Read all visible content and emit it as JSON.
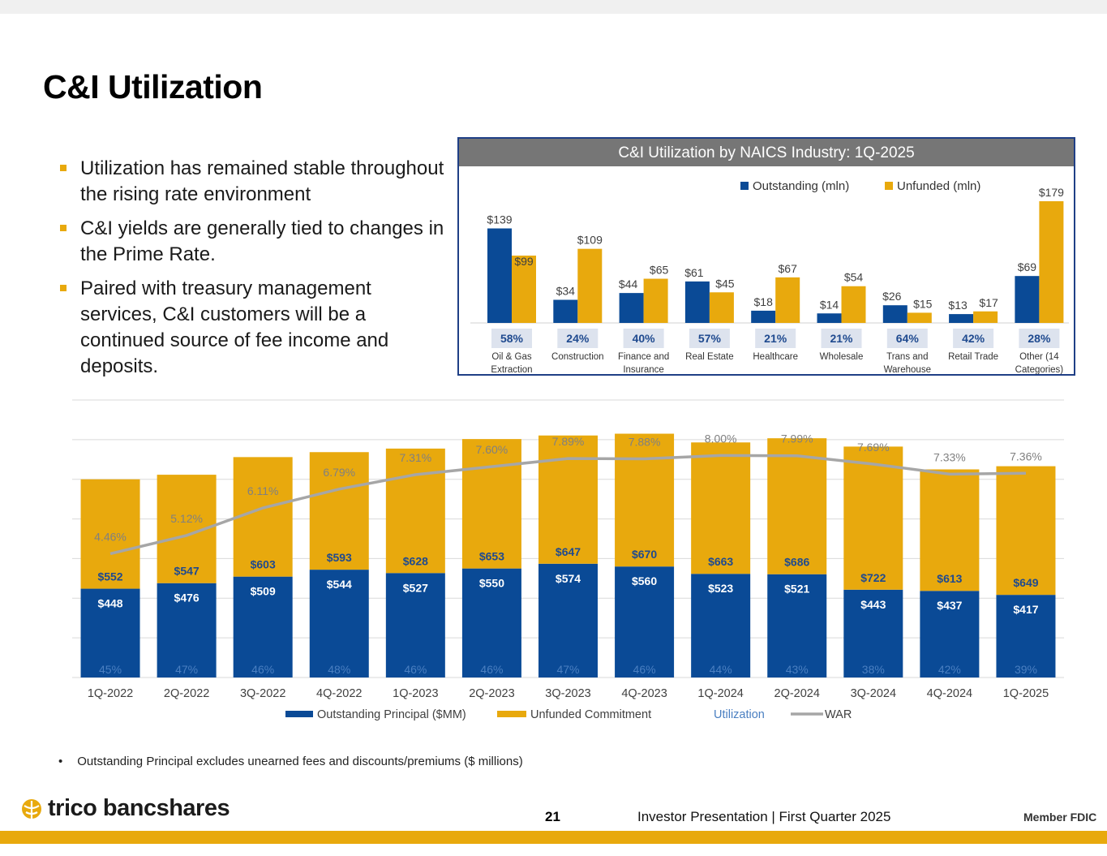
{
  "page": {
    "title": "C&I Utilization",
    "bullets": [
      "Utilization has remained stable throughout the rising rate environment",
      "C&I yields are generally tied to changes in the Prime Rate.",
      "Paired with treasury management services, C&I customers will be a continued source of fee income and deposits."
    ],
    "footnote_dot": "•",
    "footnote": "Outstanding Principal excludes unearned fees and discounts/premiums ($ millions)",
    "logo_text": "trico bancshares",
    "page_number": "21",
    "footer_text": "Investor Presentation | First Quarter 2025",
    "fdic_text": "Member FDIC"
  },
  "colors": {
    "outstanding": "#0a4a96",
    "unfunded": "#e8a90d",
    "war_line": "#a6a6a6",
    "utilization_text": "#4a7fc1",
    "naics_header_bg": "#767676"
  },
  "chart_data": [
    {
      "type": "bar",
      "title": "C&I Utilization by NAICS Industry: 1Q-2025",
      "categories": [
        "Oil & Gas Extraction",
        "Construction",
        "Finance and Insurance",
        "Real Estate",
        "Healthcare",
        "Wholesale",
        "Trans and Warehouse",
        "Retail Trade",
        "Other (14 Categories)"
      ],
      "category_lines": [
        [
          "Oil & Gas",
          "Extraction"
        ],
        [
          "Construction"
        ],
        [
          "Finance and",
          "Insurance"
        ],
        [
          "Real Estate"
        ],
        [
          "Healthcare"
        ],
        [
          "Wholesale"
        ],
        [
          "Trans and",
          "Warehouse"
        ],
        [
          "Retail Trade"
        ],
        [
          "Other (14",
          "Categories)"
        ]
      ],
      "series": [
        {
          "name": "Outstanding (mln)",
          "values": [
            139,
            34,
            44,
            61,
            18,
            14,
            26,
            13,
            69
          ],
          "labels": [
            "$139",
            "$34",
            "$44",
            "$61",
            "$18",
            "$14",
            "$26",
            "$13",
            "$69"
          ]
        },
        {
          "name": "Unfunded (mln)",
          "values": [
            99,
            109,
            65,
            45,
            67,
            54,
            15,
            17,
            179
          ],
          "labels": [
            "$99",
            "$109",
            "$65",
            "$45",
            "$67",
            "$54",
            "$15",
            "$17",
            "$179"
          ]
        }
      ],
      "utilization": [
        "58%",
        "24%",
        "40%",
        "57%",
        "21%",
        "21%",
        "64%",
        "42%",
        "28%"
      ],
      "ylim": [
        0,
        179
      ],
      "legend": "top-right"
    },
    {
      "type": "bar",
      "stacked": true,
      "categories": [
        "1Q-2022",
        "2Q-2022",
        "3Q-2022",
        "4Q-2022",
        "1Q-2023",
        "2Q-2023",
        "3Q-2023",
        "4Q-2023",
        "1Q-2024",
        "2Q-2024",
        "3Q-2024",
        "4Q-2024",
        "1Q-2025"
      ],
      "series": [
        {
          "name": "Outstanding Principal ($MM)",
          "values": [
            448,
            476,
            509,
            544,
            527,
            550,
            574,
            560,
            523,
            521,
            443,
            437,
            417
          ],
          "labels": [
            "$448",
            "$476",
            "$509",
            "$544",
            "$527",
            "$550",
            "$574",
            "$560",
            "$523",
            "$521",
            "$443",
            "$437",
            "$417"
          ]
        },
        {
          "name": "Unfunded Commitment",
          "values": [
            552,
            547,
            603,
            593,
            628,
            653,
            647,
            670,
            663,
            686,
            722,
            613,
            649
          ],
          "labels": [
            "$552",
            "$547",
            "$603",
            "$593",
            "$628",
            "$653",
            "$647",
            "$670",
            "$663",
            "$686",
            "$722",
            "$613",
            "$649"
          ]
        },
        {
          "name": "Utilization",
          "values": [
            45,
            47,
            46,
            48,
            46,
            46,
            47,
            46,
            44,
            43,
            38,
            42,
            39
          ],
          "labels": [
            "45%",
            "47%",
            "46%",
            "48%",
            "46%",
            "46%",
            "47%",
            "46%",
            "44%",
            "43%",
            "38%",
            "42%",
            "39%"
          ]
        },
        {
          "name": "WAR",
          "values": [
            4.46,
            5.12,
            6.11,
            6.79,
            7.31,
            7.6,
            7.89,
            7.88,
            8.0,
            7.99,
            7.69,
            7.33,
            7.36
          ],
          "labels": [
            "4.46%",
            "5.12%",
            "6.11%",
            "6.79%",
            "7.31%",
            "7.60%",
            "7.89%",
            "7.88%",
            "8.00%",
            "7.99%",
            "7.69%",
            "7.33%",
            "7.36%"
          ]
        }
      ],
      "ylim": [
        0,
        1400
      ],
      "war_ylim": [
        0,
        10
      ],
      "grid": true,
      "legend": "bottom"
    }
  ]
}
